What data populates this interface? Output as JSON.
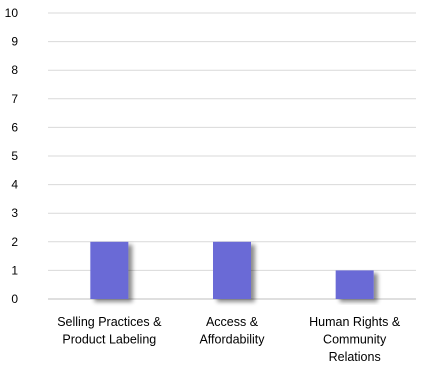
{
  "chart_data": {
    "type": "bar",
    "categories": [
      [
        "Selling Practices &",
        "Product Labeling"
      ],
      [
        "Access &",
        "Affordability"
      ],
      [
        "Human Rights &",
        "Community",
        "Relations"
      ]
    ],
    "values": [
      2,
      2,
      1
    ],
    "ylim": [
      0,
      10
    ],
    "yticks": [
      0,
      1,
      2,
      3,
      4,
      5,
      6,
      7,
      8,
      9,
      10
    ],
    "grid": true,
    "legend": "none",
    "colors": {
      "bar": "#6b6bd6",
      "bar_shadow": "#a8a8a8",
      "grid": "#d9d9d9"
    }
  }
}
